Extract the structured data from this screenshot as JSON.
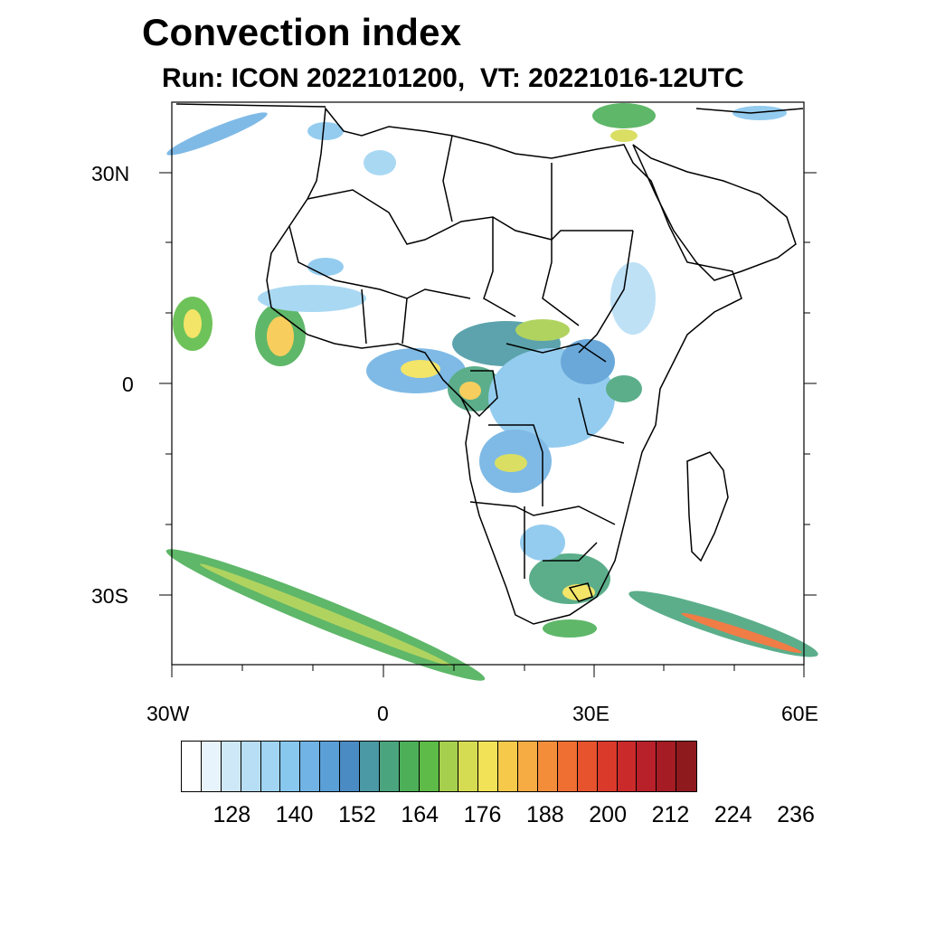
{
  "title": "Convection index",
  "subtitle": "Run: ICON 2022101200,  VT: 20221016-12UTC",
  "map": {
    "lat_labels": [
      "30N",
      "0",
      "30S"
    ],
    "lon_labels": [
      "30W",
      "0",
      "30E",
      "60E"
    ]
  },
  "colorbar": {
    "colors": [
      "#ffffff",
      "#e8f4fc",
      "#cfe8f7",
      "#b7def5",
      "#a0d4f2",
      "#88c7ee",
      "#71b3e4",
      "#5a9fd6",
      "#4a8bc4",
      "#4a99a4",
      "#4aa57e",
      "#4daf58",
      "#5ebb48",
      "#a7cf4e",
      "#d6dc52",
      "#f2e257",
      "#f7c94b",
      "#f7ab43",
      "#f48d3a",
      "#ef6e32",
      "#e6532c",
      "#da3a2a",
      "#cb2a2b",
      "#b8202a",
      "#a51c24",
      "#8e1a1e"
    ],
    "labels": [
      "128",
      "140",
      "152",
      "164",
      "176",
      "188",
      "200",
      "212",
      "224",
      "236"
    ]
  }
}
